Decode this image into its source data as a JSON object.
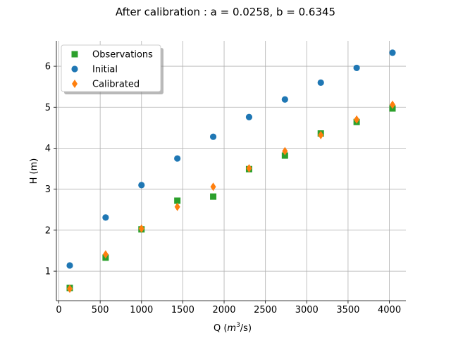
{
  "chart_data": {
    "type": "scatter",
    "title": "After calibration : a = 0.0258, b = 0.6345",
    "xlabel_main": "Q (",
    "xlabel_m": "m",
    "xlabel_sup": "3",
    "xlabel_rest": "/s)",
    "ylabel": "H (m)",
    "xlim": [
      -30,
      4200
    ],
    "ylim": [
      0.28,
      6.62
    ],
    "xticks": [
      0,
      500,
      1000,
      1500,
      2000,
      2500,
      3000,
      3500,
      4000
    ],
    "yticks": [
      1,
      2,
      3,
      4,
      5,
      6
    ],
    "grid": true,
    "legend_position": "top-left",
    "x": [
      132,
      566,
      1000,
      1434,
      1868,
      2302,
      2736,
      3170,
      3604,
      4038
    ],
    "series": [
      {
        "name": "Observations",
        "marker": "square",
        "color": "#2ca02c",
        "values": [
          0.59,
          1.33,
          2.02,
          2.72,
          2.82,
          3.49,
          3.82,
          4.36,
          4.64,
          4.97
        ]
      },
      {
        "name": "Initial",
        "marker": "circle",
        "color": "#1f77b4",
        "values": [
          1.14,
          2.31,
          3.1,
          3.75,
          4.28,
          4.76,
          5.19,
          5.6,
          5.96,
          6.33
        ]
      },
      {
        "name": "Calibrated",
        "marker": "diamond",
        "color": "#ff7f0e",
        "values": [
          0.57,
          1.41,
          2.04,
          2.57,
          3.06,
          3.51,
          3.93,
          4.32,
          4.7,
          5.06
        ]
      }
    ]
  }
}
